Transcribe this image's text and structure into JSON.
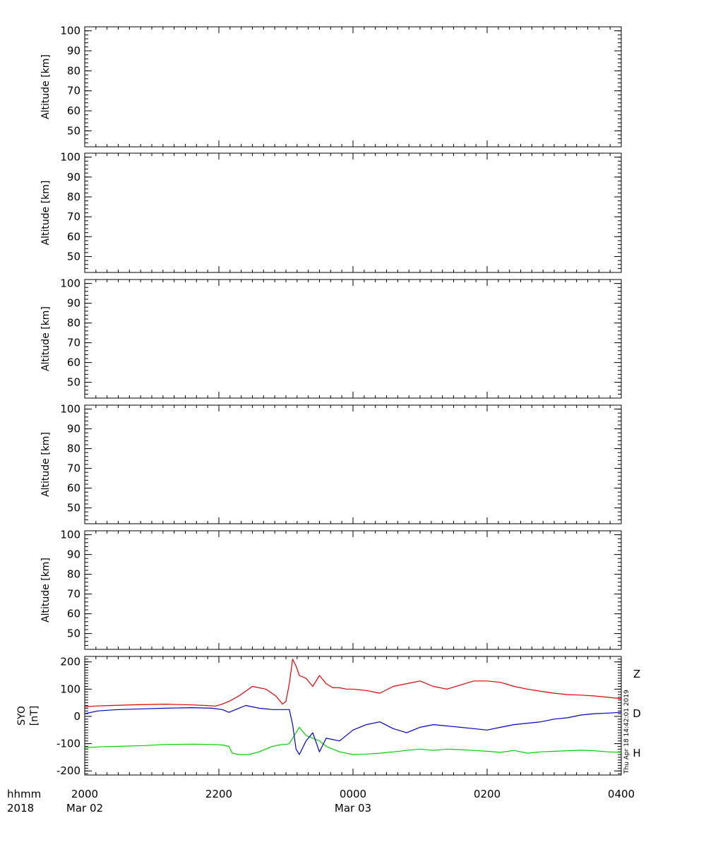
{
  "chart_data": [
    {
      "type": "line",
      "ylabel": "Altitude  [km]",
      "ylim": [
        42,
        102
      ],
      "yticks": [
        50,
        60,
        70,
        80,
        90,
        100
      ],
      "series": []
    },
    {
      "type": "line",
      "ylabel": "Altitude  [km]",
      "ylim": [
        42,
        102
      ],
      "yticks": [
        50,
        60,
        70,
        80,
        90,
        100
      ],
      "series": []
    },
    {
      "type": "line",
      "ylabel": "Altitude  [km]",
      "ylim": [
        42,
        102
      ],
      "yticks": [
        50,
        60,
        70,
        80,
        90,
        100
      ],
      "series": []
    },
    {
      "type": "line",
      "ylabel": "Altitude  [km]",
      "ylim": [
        42,
        102
      ],
      "yticks": [
        50,
        60,
        70,
        80,
        90,
        100
      ],
      "series": []
    },
    {
      "type": "line",
      "ylabel": "Altitude  [km]",
      "ylim": [
        42,
        102
      ],
      "yticks": [
        50,
        60,
        70,
        80,
        90,
        100
      ],
      "series": []
    },
    {
      "type": "line",
      "ylabel": [
        "SYO",
        "[nT]"
      ],
      "ylim": [
        -215,
        220
      ],
      "yticks": [
        -200,
        -100,
        0,
        100,
        200
      ],
      "series": [
        {
          "name": "Z",
          "color": "#e00000",
          "x": [
            0,
            0.15,
            0.4,
            0.8,
            1.2,
            1.6,
            1.8,
            1.95,
            2.05,
            2.15,
            2.3,
            2.5,
            2.7,
            2.85,
            2.9,
            2.95,
            3.0,
            3.05,
            3.1,
            3.15,
            3.2,
            3.3,
            3.4,
            3.5,
            3.6,
            3.7,
            3.8,
            3.9,
            4.0,
            4.2,
            4.4,
            4.6,
            4.8,
            5.0,
            5.2,
            5.4,
            5.6,
            5.8,
            6.0,
            6.2,
            6.4,
            6.6,
            6.8,
            7.0,
            7.2,
            7.4,
            7.6,
            7.8,
            8.0
          ],
          "y": [
            35,
            38,
            40,
            43,
            45,
            42,
            40,
            38,
            45,
            55,
            75,
            110,
            100,
            75,
            60,
            45,
            55,
            120,
            210,
            185,
            150,
            140,
            110,
            150,
            120,
            105,
            105,
            100,
            100,
            95,
            85,
            110,
            120,
            130,
            110,
            100,
            115,
            130,
            130,
            125,
            110,
            100,
            92,
            85,
            80,
            78,
            75,
            70,
            65
          ]
        },
        {
          "name": "D",
          "color": "#00d000",
          "x": [
            0,
            0.2,
            0.5,
            0.9,
            1.2,
            1.6,
            1.9,
            2.05,
            2.15,
            2.2,
            2.3,
            2.45,
            2.6,
            2.8,
            2.9,
            2.95,
            3.0,
            3.05,
            3.1,
            3.2,
            3.3,
            3.4,
            3.5,
            3.6,
            3.8,
            4.0,
            4.2,
            4.4,
            4.6,
            4.8,
            5.0,
            5.2,
            5.4,
            5.6,
            5.8,
            6.0,
            6.2,
            6.4,
            6.6,
            6.8,
            7.0,
            7.2,
            7.4,
            7.6,
            7.8,
            8.0
          ],
          "y": [
            -115,
            -112,
            -110,
            -107,
            -103,
            -102,
            -103,
            -105,
            -110,
            -135,
            -140,
            -140,
            -130,
            -110,
            -105,
            -103,
            -103,
            -100,
            -80,
            -40,
            -70,
            -80,
            -90,
            -110,
            -130,
            -140,
            -138,
            -135,
            -130,
            -125,
            -120,
            -125,
            -120,
            -122,
            -125,
            -128,
            -132,
            -125,
            -135,
            -130,
            -128,
            -126,
            -124,
            -126,
            -130,
            -132
          ]
        },
        {
          "name": "H",
          "color": "#0000c8",
          "x": [
            0,
            0.2,
            0.5,
            0.9,
            1.2,
            1.6,
            1.9,
            2.05,
            2.15,
            2.3,
            2.4,
            2.6,
            2.8,
            2.9,
            2.95,
            3.0,
            3.05,
            3.1,
            3.15,
            3.2,
            3.3,
            3.4,
            3.5,
            3.6,
            3.8,
            4.0,
            4.2,
            4.4,
            4.6,
            4.8,
            5.0,
            5.2,
            5.4,
            5.6,
            5.8,
            6.0,
            6.2,
            6.4,
            6.6,
            6.8,
            7.0,
            7.2,
            7.4,
            7.6,
            7.8,
            8.0
          ],
          "y": [
            10,
            20,
            25,
            28,
            30,
            32,
            30,
            25,
            15,
            30,
            40,
            30,
            25,
            25,
            25,
            25,
            25,
            -30,
            -120,
            -140,
            -90,
            -60,
            -130,
            -80,
            -90,
            -50,
            -30,
            -20,
            -45,
            -60,
            -40,
            -30,
            -35,
            -40,
            -45,
            -50,
            -40,
            -30,
            -25,
            -20,
            -10,
            -5,
            5,
            10,
            12,
            15
          ]
        }
      ]
    }
  ],
  "x_axis": {
    "header": [
      "hhmm",
      "2018"
    ],
    "ticks": [
      {
        "pos": 0,
        "label": "2000",
        "date": "Mar 02"
      },
      {
        "pos": 2,
        "label": "2200",
        "date": ""
      },
      {
        "pos": 4,
        "label": "0000",
        "date": "Mar 03"
      },
      {
        "pos": 6,
        "label": "0200",
        "date": ""
      },
      {
        "pos": 8,
        "label": "0400",
        "date": ""
      }
    ]
  },
  "legend_labels": [
    "Z",
    "D",
    "H"
  ],
  "timestamp": "Thu Apr 18 14:42:01 2019"
}
